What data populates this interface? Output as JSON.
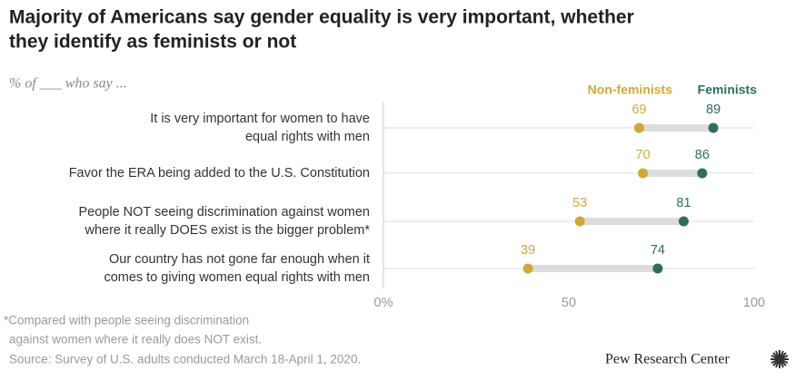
{
  "chart_data": {
    "type": "dot",
    "title": [
      "Majority of Americans say gender equality is very important, whether",
      "they identify as feminists or not"
    ],
    "subtitle": "% of ___ who say ...",
    "categories": [
      [
        "It is very important for women to have",
        "equal rights with men"
      ],
      [
        "Favor the ERA being added to the U.S. Constitution"
      ],
      [
        "People NOT seeing discrimination against women",
        "where it really DOES exist is the bigger problem*"
      ],
      [
        "Our country has not gone far enough when it",
        "comes to giving women equal rights with men"
      ]
    ],
    "series": [
      {
        "name": "Non-feminists",
        "color": "#d0a83a",
        "values": [
          69,
          70,
          53,
          39
        ]
      },
      {
        "name": "Feminists",
        "color": "#2e6d5f",
        "values": [
          89,
          86,
          81,
          74
        ]
      }
    ],
    "xlim": [
      0,
      100
    ],
    "xticks": [
      {
        "value": 0,
        "label": "0%"
      },
      50,
      100
    ],
    "note": [
      "*Compared with people seeing discrimination",
      "against women where it really does NOT exist."
    ],
    "source": "Source: Survey of U.S. adults conducted March 18-April 1, 2020.",
    "credit": "Pew Research Center"
  }
}
